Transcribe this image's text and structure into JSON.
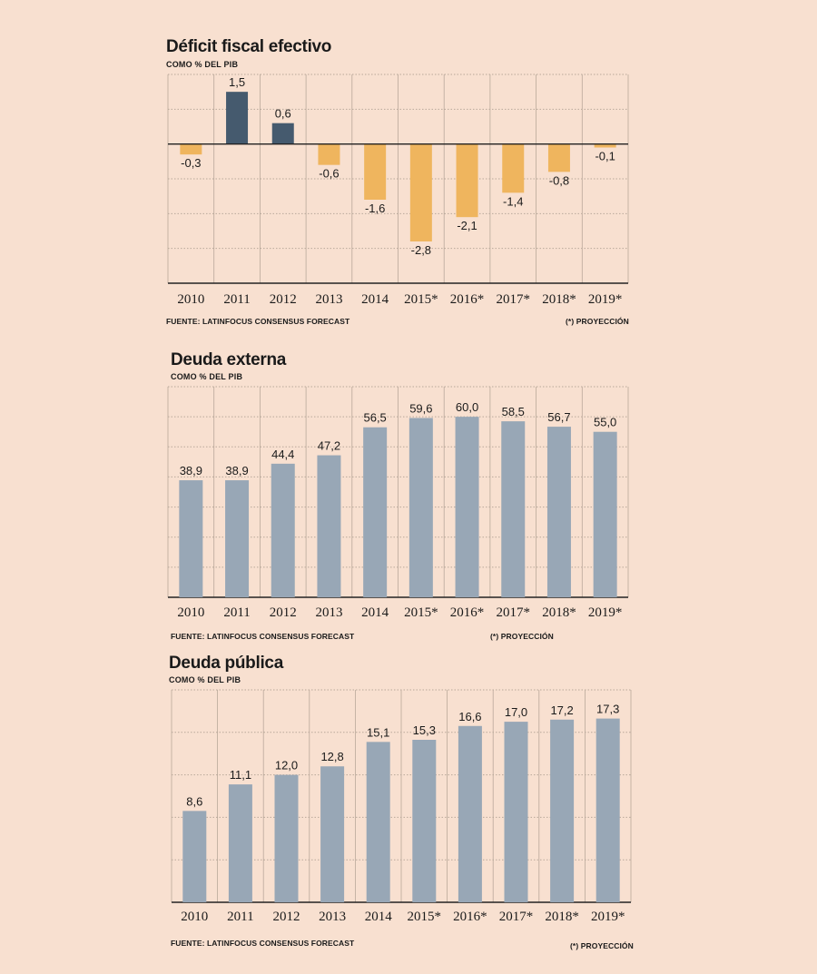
{
  "colors": {
    "background": "#f8e0d0",
    "positive_dark": "#455a6e",
    "negative_orange": "#efb55e",
    "bar_gray": "#98a7b6",
    "grid": "#b9a89a",
    "axis": "#222222"
  },
  "chart_data": [
    {
      "id": "deficit",
      "type": "bar",
      "title": "Déficit fiscal efectivo",
      "subtitle": "COMO % DEL PIB",
      "source": "FUENTE: LATINFOCUS CONSENSUS FORECAST",
      "note": "(*) PROYECCIÓN",
      "categories": [
        "2010",
        "2011",
        "2012",
        "2013",
        "2014",
        "2015*",
        "2016*",
        "2017*",
        "2018*",
        "2019*"
      ],
      "values": [
        -0.3,
        1.5,
        0.6,
        -0.6,
        -1.6,
        -2.8,
        -2.1,
        -1.4,
        -0.8,
        -0.1
      ],
      "labels": [
        "-0,3",
        "1,5",
        "0,6",
        "-0,6",
        "-1,6",
        "-2,8",
        "-2,1",
        "-1,4",
        "-0,8",
        "-0,1"
      ],
      "ylim": [
        -4,
        2
      ],
      "grid": true
    },
    {
      "id": "externa",
      "type": "bar",
      "title": "Deuda externa",
      "subtitle": "COMO % DEL PIB",
      "source": "FUENTE: LATINFOCUS CONSENSUS FORECAST",
      "note": "(*) PROYECCIÓN",
      "categories": [
        "2010",
        "2011",
        "2012",
        "2013",
        "2014",
        "2015*",
        "2016*",
        "2017*",
        "2018*",
        "2019*"
      ],
      "values": [
        38.9,
        38.9,
        44.4,
        47.2,
        56.5,
        59.6,
        60.0,
        58.5,
        56.7,
        55.0
      ],
      "labels": [
        "38,9",
        "38,9",
        "44,4",
        "47,2",
        "56,5",
        "59,6",
        "60,0",
        "58,5",
        "56,7",
        "55,0"
      ],
      "ylim": [
        0,
        70
      ],
      "grid": true
    },
    {
      "id": "publica",
      "type": "bar",
      "title": "Deuda pública",
      "subtitle": "COMO % DEL PIB",
      "source": "FUENTE: LATINFOCUS CONSENSUS FORECAST",
      "note": "(*) PROYECCIÓN",
      "categories": [
        "2010",
        "2011",
        "2012",
        "2013",
        "2014",
        "2015*",
        "2016*",
        "2017*",
        "2018*",
        "2019*"
      ],
      "values": [
        8.6,
        11.1,
        12.0,
        12.8,
        15.1,
        15.3,
        16.6,
        17.0,
        17.2,
        17.3
      ],
      "labels": [
        "8,6",
        "11,1",
        "12,0",
        "12,8",
        "15,1",
        "15,3",
        "16,6",
        "17,0",
        "17,2",
        "17,3"
      ],
      "ylim": [
        0,
        20
      ],
      "grid": true
    }
  ]
}
